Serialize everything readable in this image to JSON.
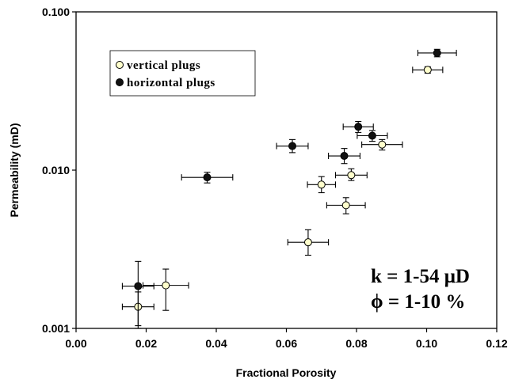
{
  "chart_data": {
    "type": "scatter",
    "xlabel": "Fractional Porosity",
    "ylabel": "Permeability (mD)",
    "xlim": [
      0.0,
      0.12
    ],
    "ylim": [
      0.001,
      0.1
    ],
    "yscale": "log",
    "x_ticks": [
      "0.00",
      "0.02",
      "0.04",
      "0.06",
      "0.08",
      "0.10",
      "0.12"
    ],
    "y_ticks": [
      "0.001",
      "0.010",
      "0.100"
    ],
    "grid": false,
    "legend_position": "top-left",
    "series": [
      {
        "name": "vertical plugs",
        "marker": "open-circle",
        "color": "#ffffcc",
        "points": [
          {
            "x": 0.0177,
            "y": 0.00137,
            "xerr": 0.0045,
            "yerr_low": 0.00033,
            "yerr_high": 0.00033
          },
          {
            "x": 0.0256,
            "y": 0.00187,
            "xerr": 0.0065,
            "yerr_low": 0.00057,
            "yerr_high": 0.0005
          },
          {
            "x": 0.0662,
            "y": 0.0035,
            "xerr": 0.0058,
            "yerr_low": 0.0006,
            "yerr_high": 0.0007
          },
          {
            "x": 0.07,
            "y": 0.0081,
            "xerr": 0.004,
            "yerr_low": 0.0009,
            "yerr_high": 0.001
          },
          {
            "x": 0.077,
            "y": 0.006,
            "xerr": 0.0055,
            "yerr_low": 0.0007,
            "yerr_high": 0.0007
          },
          {
            "x": 0.0785,
            "y": 0.0093,
            "xerr": 0.0045,
            "yerr_low": 0.0007,
            "yerr_high": 0.0009
          },
          {
            "x": 0.0873,
            "y": 0.0145,
            "xerr": 0.0058,
            "yerr_low": 0.0011,
            "yerr_high": 0.0011
          },
          {
            "x": 0.1003,
            "y": 0.043,
            "xerr": 0.0043,
            "yerr_low": 0.002,
            "yerr_high": 0.002
          }
        ]
      },
      {
        "name": "horizontal plugs",
        "marker": "filled-circle",
        "color": "#111111",
        "points": [
          {
            "x": 0.0177,
            "y": 0.00185,
            "xerr": 0.0045,
            "yerr_low": 0.00085,
            "yerr_high": 0.0008
          },
          {
            "x": 0.0374,
            "y": 0.009,
            "xerr": 0.0073,
            "yerr_low": 0.0007,
            "yerr_high": 0.0007
          },
          {
            "x": 0.0617,
            "y": 0.0142,
            "xerr": 0.0045,
            "yerr_low": 0.0013,
            "yerr_high": 0.0014
          },
          {
            "x": 0.0765,
            "y": 0.0123,
            "xerr": 0.0045,
            "yerr_low": 0.0013,
            "yerr_high": 0.0014
          },
          {
            "x": 0.0805,
            "y": 0.0188,
            "xerr": 0.0043,
            "yerr_low": 0.0015,
            "yerr_high": 0.0015
          },
          {
            "x": 0.0845,
            "y": 0.0165,
            "xerr": 0.0043,
            "yerr_low": 0.0013,
            "yerr_high": 0.0013
          },
          {
            "x": 0.103,
            "y": 0.055,
            "xerr": 0.0055,
            "yerr_low": 0.003,
            "yerr_high": 0.003
          }
        ]
      }
    ],
    "annotations": [
      "k = 1-54 μD",
      "ϕ = 1-10 %"
    ]
  }
}
